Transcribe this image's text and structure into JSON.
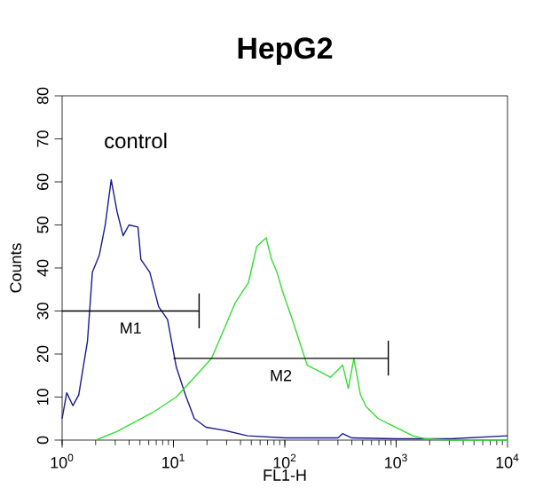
{
  "chart_data": {
    "type": "line",
    "title": "HepG2",
    "xlabel": "FL1-H",
    "ylabel": "Counts",
    "log": "x",
    "xlim": [
      1,
      10000
    ],
    "ylim": [
      0,
      80
    ],
    "xticks": [
      {
        "value": 1,
        "label": "10$^{0}$"
      },
      {
        "value": 10,
        "label": "10$^{1}$"
      },
      {
        "value": 100,
        "label": "10$^{2}$"
      },
      {
        "value": 1000,
        "label": "10$^{3}$"
      },
      {
        "value": 10000,
        "label": "10$^{4}$"
      }
    ],
    "yticks": [
      0,
      10,
      20,
      30,
      40,
      50,
      60,
      70,
      80
    ],
    "grid": false,
    "annotations": [
      "control",
      "M1",
      "M2"
    ],
    "series": [
      {
        "color": "#1a1a8c",
        "x": [
          1.0,
          1.1,
          1.25,
          1.41,
          1.69,
          1.87,
          2.16,
          2.44,
          2.76,
          3.12,
          3.53,
          3.99,
          4.8,
          5.1,
          6.13,
          7.36,
          8.85,
          10.6,
          12.8,
          15.4,
          19.6,
          28.3,
          46.2,
          100,
          300,
          330,
          400,
          1000,
          3000,
          10000
        ],
        "values": [
          5,
          11,
          8,
          10.5,
          23,
          39,
          43,
          50,
          60.5,
          53,
          47.5,
          50,
          49.5,
          42,
          39,
          31,
          28,
          17,
          10.5,
          5,
          3,
          2.3,
          1,
          0.5,
          0.5,
          1.5,
          0.5,
          0.3,
          0.3,
          1
        ]
      },
      {
        "color": "#33dd33",
        "x": [
          2.0,
          3.1,
          6.5,
          10.6,
          15.4,
          22,
          28.3,
          36,
          47,
          56,
          68,
          76,
          85,
          97,
          117,
          141,
          159,
          203,
          257,
          331,
          372,
          417,
          478,
          537,
          690,
          871,
          1120,
          1410,
          1820,
          3000,
          10000
        ],
        "values": [
          0,
          2,
          6.4,
          10,
          14.6,
          19,
          25.6,
          32,
          36.5,
          45,
          47,
          42,
          39,
          34,
          28,
          21.5,
          17.4,
          16,
          14.6,
          17.4,
          12,
          19,
          10.5,
          7.8,
          5,
          3.7,
          2.3,
          1,
          0.3,
          0,
          0
        ]
      },
      {
        "color": "#000000",
        "x": [
          1,
          17,
          17,
          17
        ],
        "values": [
          30,
          30,
          34,
          26
        ]
      },
      {
        "color": "#000000",
        "x": [
          10,
          850,
          850,
          850
        ],
        "values": [
          19,
          19,
          23,
          15
        ]
      }
    ]
  }
}
